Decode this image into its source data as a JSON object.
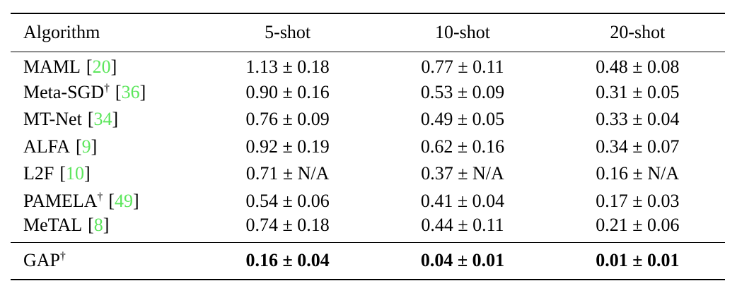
{
  "colors": {
    "citation_green": "#5ce65c",
    "text": "#000000",
    "background": "#ffffff"
  },
  "symbols": {
    "dagger": "†",
    "bracket_open": "[",
    "bracket_close": "]"
  },
  "table": {
    "columns": [
      "Algorithm",
      "5-shot",
      "10-shot",
      "20-shot"
    ],
    "rows": [
      {
        "name": "MAML",
        "dagger": false,
        "citation": "20",
        "values": [
          "1.13 ± 0.18",
          "0.77 ± 0.11",
          "0.48 ± 0.08"
        ]
      },
      {
        "name": "Meta-SGD",
        "dagger": true,
        "citation": "36",
        "values": [
          "0.90 ± 0.16",
          "0.53 ± 0.09",
          "0.31 ± 0.05"
        ]
      },
      {
        "name": "MT-Net",
        "dagger": false,
        "citation": "34",
        "values": [
          "0.76 ± 0.09",
          "0.49 ± 0.05",
          "0.33 ± 0.04"
        ]
      },
      {
        "name": "ALFA",
        "dagger": false,
        "citation": "9",
        "values": [
          "0.92 ± 0.19",
          "0.62 ± 0.16",
          "0.34 ± 0.07"
        ]
      },
      {
        "name": "L2F",
        "dagger": false,
        "citation": "10",
        "values": [
          "0.71 ± N/A",
          "0.37 ± N/A",
          "0.16 ± N/A"
        ]
      },
      {
        "name": "PAMELA",
        "dagger": true,
        "citation": "49",
        "values": [
          "0.54 ± 0.06",
          "0.41 ± 0.04",
          "0.17 ± 0.03"
        ]
      },
      {
        "name": "MeTAL",
        "dagger": false,
        "citation": "8",
        "values": [
          "0.74 ± 0.18",
          "0.44 ± 0.11",
          "0.21 ± 0.06"
        ]
      }
    ],
    "summary_row": {
      "name": "GAP",
      "dagger": true,
      "values": [
        "0.16 ± 0.04",
        "0.04 ± 0.01",
        "0.01 ± 0.01"
      ]
    }
  }
}
